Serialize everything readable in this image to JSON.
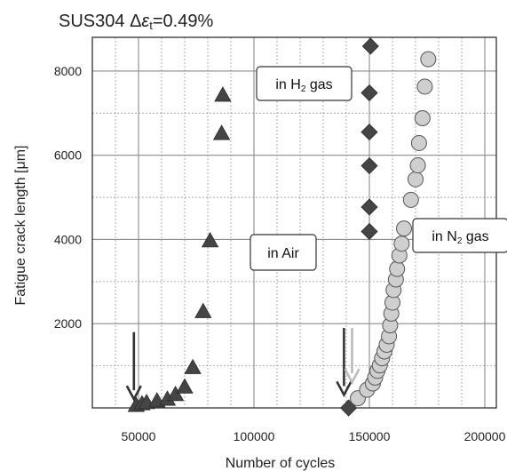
{
  "chart_data": {
    "type": "scatter",
    "title": {
      "main": "SUS304 ",
      "delta": "Δ",
      "epsilon": "ε",
      "sub": "t",
      "value": "=0.49%"
    },
    "xlabel": "Number of cycles",
    "ylabel": "Fatigue crack length [μm]",
    "xlim": [
      30000,
      205000
    ],
    "ylim": [
      0,
      8800
    ],
    "x_ticks": [
      {
        "value": 50000,
        "label": "50000"
      },
      {
        "value": 100000,
        "label": "100000"
      },
      {
        "value": 150000,
        "label": "150000"
      },
      {
        "value": 200000,
        "label": "200000"
      }
    ],
    "y_ticks": [
      {
        "value": 2000,
        "label": "2000"
      },
      {
        "value": 4000,
        "label": "4000"
      },
      {
        "value": 6000,
        "label": "6000"
      },
      {
        "value": 8000,
        "label": "8000"
      }
    ],
    "grid": true,
    "colors": {
      "air_marker": "#454545",
      "h2_marker": "#454545",
      "n2_marker_fill": "#cfcfcf",
      "n2_marker_stroke": "#555555",
      "grid_major": "#8c8c8c",
      "grid_minor": "#9a9a9a",
      "arrow": "#333333",
      "arrow_light": "#bbbbbb"
    },
    "series": [
      {
        "id": "air",
        "marker": "triangle",
        "points": [
          {
            "x": 49000,
            "y": 60
          },
          {
            "x": 51500,
            "y": 100
          },
          {
            "x": 53500,
            "y": 130
          },
          {
            "x": 58000,
            "y": 170
          },
          {
            "x": 62500,
            "y": 210
          },
          {
            "x": 66000,
            "y": 320
          },
          {
            "x": 70000,
            "y": 500
          },
          {
            "x": 73500,
            "y": 960
          },
          {
            "x": 78000,
            "y": 2290
          },
          {
            "x": 81000,
            "y": 3970
          },
          {
            "x": 86000,
            "y": 6520
          },
          {
            "x": 86500,
            "y": 7430
          }
        ]
      },
      {
        "id": "h2",
        "marker": "diamond",
        "points": [
          {
            "x": 141000,
            "y": 0
          },
          {
            "x": 150000,
            "y": 4190
          },
          {
            "x": 150000,
            "y": 4770
          },
          {
            "x": 150000,
            "y": 5750
          },
          {
            "x": 150000,
            "y": 6550
          },
          {
            "x": 150000,
            "y": 7480
          },
          {
            "x": 150500,
            "y": 8590
          }
        ]
      },
      {
        "id": "n2",
        "marker": "circle",
        "points": [
          {
            "x": 145000,
            "y": 230
          },
          {
            "x": 149000,
            "y": 430
          },
          {
            "x": 151500,
            "y": 580
          },
          {
            "x": 152500,
            "y": 720
          },
          {
            "x": 153500,
            "y": 880
          },
          {
            "x": 154500,
            "y": 1010
          },
          {
            "x": 155500,
            "y": 1180
          },
          {
            "x": 156500,
            "y": 1340
          },
          {
            "x": 157500,
            "y": 1500
          },
          {
            "x": 158500,
            "y": 1700
          },
          {
            "x": 159000,
            "y": 1960
          },
          {
            "x": 159500,
            "y": 2240
          },
          {
            "x": 160000,
            "y": 2500
          },
          {
            "x": 160500,
            "y": 2800
          },
          {
            "x": 161500,
            "y": 3050
          },
          {
            "x": 162000,
            "y": 3300
          },
          {
            "x": 163000,
            "y": 3620
          },
          {
            "x": 164000,
            "y": 3900
          },
          {
            "x": 165000,
            "y": 4260
          },
          {
            "x": 168000,
            "y": 4940
          },
          {
            "x": 170000,
            "y": 5430
          },
          {
            "x": 171000,
            "y": 5760
          },
          {
            "x": 171500,
            "y": 6290
          },
          {
            "x": 173000,
            "y": 6880
          },
          {
            "x": 174000,
            "y": 7630
          },
          {
            "x": 175500,
            "y": 8280
          }
        ]
      }
    ],
    "annotations": [
      {
        "id": "h2",
        "text_main": "in H",
        "text_sub": "2",
        "text_tail": " gas"
      },
      {
        "id": "air",
        "text_main": "in Air",
        "text_sub": "",
        "text_tail": ""
      },
      {
        "id": "n2",
        "text_main": "in N",
        "text_sub": "2",
        "text_tail": " gas"
      }
    ],
    "arrows": [
      {
        "x": 48000,
        "y_from": 1800,
        "y_to": 250,
        "color": "arrow"
      },
      {
        "x": 139000,
        "y_from": 1900,
        "y_to": 350,
        "color": "arrow"
      },
      {
        "x": 142500,
        "y_from": 1900,
        "y_to": 650,
        "color": "arrow_light"
      }
    ]
  }
}
